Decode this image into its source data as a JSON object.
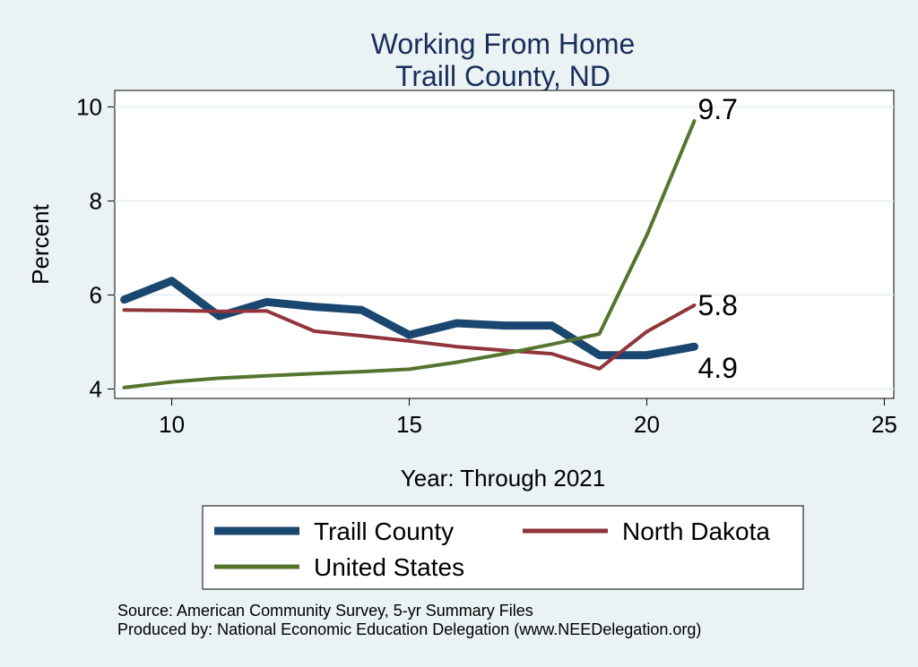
{
  "chart_data": {
    "type": "line",
    "title": "Working From Home",
    "subtitle": "Traill County, ND",
    "xlabel": "Year: Through 2021",
    "ylabel": "Percent",
    "xlim": [
      8.8,
      25.2
    ],
    "ylim": [
      3.8,
      10.35
    ],
    "xticks": [
      10,
      15,
      20,
      25
    ],
    "yticks": [
      4,
      6,
      8,
      10
    ],
    "grid": "horizontal",
    "legend_position": "bottom",
    "x": [
      9,
      10,
      11,
      12,
      13,
      14,
      15,
      16,
      17,
      18,
      19,
      20,
      21
    ],
    "series": [
      {
        "name": "Traill County",
        "color": "#1a476f",
        "values": [
          5.9,
          6.3,
          5.55,
          5.85,
          5.75,
          5.68,
          5.15,
          5.4,
          5.35,
          5.35,
          4.72,
          4.72,
          4.9
        ],
        "end_label": "4.9"
      },
      {
        "name": "North Dakota",
        "color": "#90353b",
        "values": [
          5.68,
          5.67,
          5.65,
          5.66,
          5.23,
          5.13,
          5.02,
          4.9,
          4.82,
          4.75,
          4.43,
          5.22,
          5.78
        ],
        "end_label": "5.8"
      },
      {
        "name": "United States",
        "color": "#55752f",
        "values": [
          4.03,
          4.15,
          4.23,
          4.28,
          4.33,
          4.37,
          4.42,
          4.57,
          4.75,
          4.95,
          5.17,
          7.27,
          9.7
        ],
        "end_label": "9.7"
      }
    ]
  },
  "notes": {
    "source": "Source: American Community Survey, 5-yr Summary Files",
    "produced_by": "Produced by: National Economic Education Delegation (www.NEEDelegation.org)"
  }
}
